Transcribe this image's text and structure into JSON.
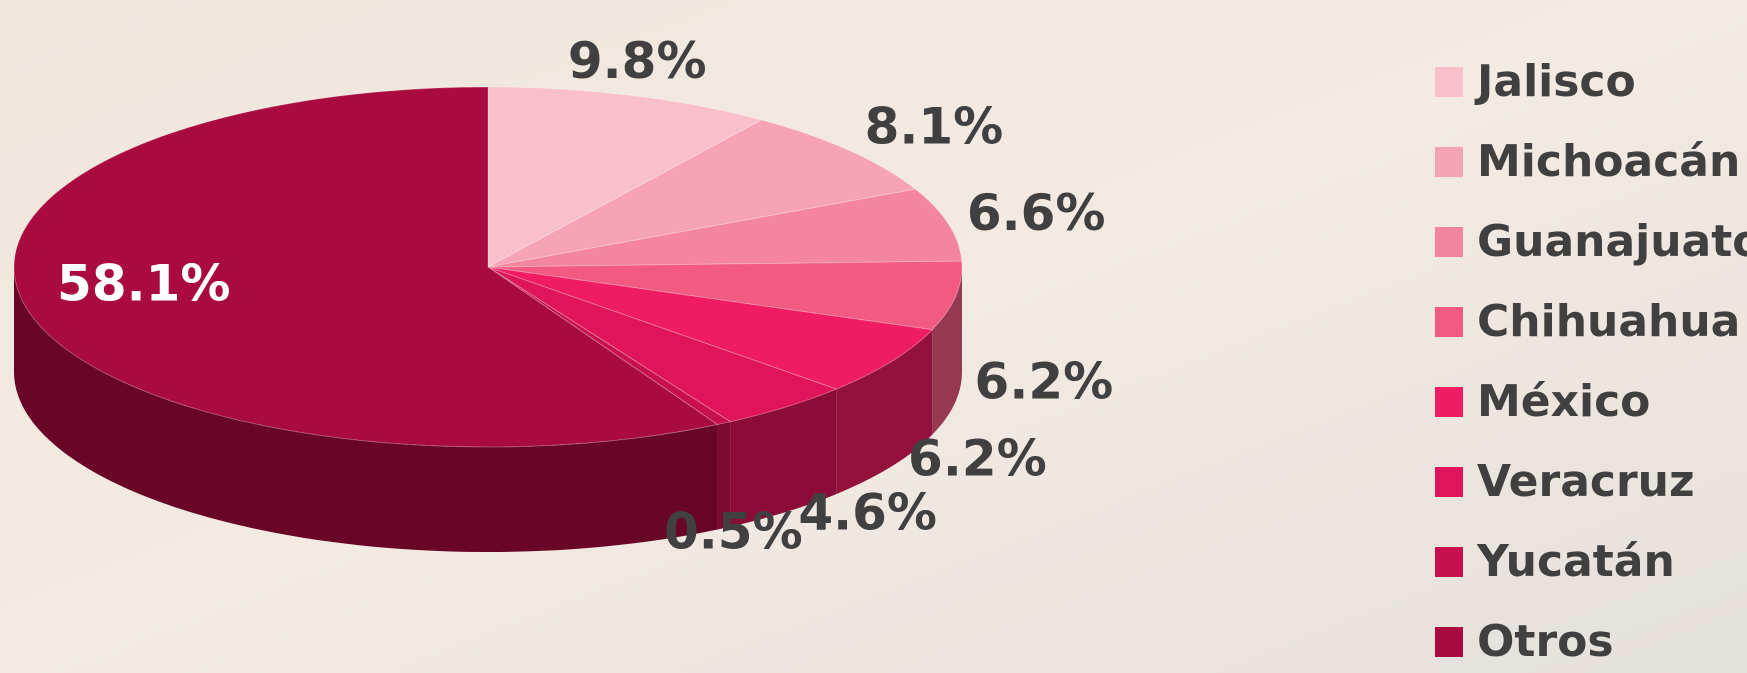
{
  "chart_data": {
    "type": "pie",
    "categories": [
      "Jalisco",
      "Michoacán",
      "Guanajuato",
      "Chihuahua",
      "México",
      "Veracruz",
      "Yucatán",
      "Otros"
    ],
    "values": [
      9.8,
      8.1,
      6.6,
      6.2,
      6.2,
      4.6,
      0.5,
      58.1
    ],
    "value_labels": [
      "9.8%",
      "8.1%",
      "6.6%",
      "6.2%",
      "6.2%",
      "4.6%",
      "0.5%",
      "58.1%"
    ],
    "colors": [
      "#f9c0cc",
      "#f6a3b5",
      "#f4859f",
      "#f25a82",
      "#f01c63",
      "#e0145a",
      "#c8104f",
      "#a90a40"
    ],
    "legend": "right"
  }
}
